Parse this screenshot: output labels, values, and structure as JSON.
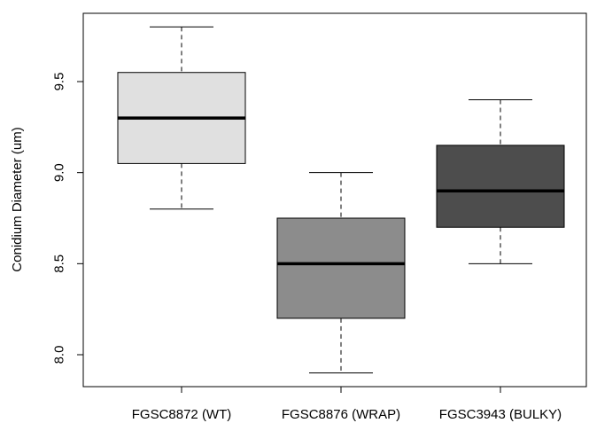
{
  "chart_data": {
    "type": "boxplot",
    "title": "",
    "xlabel": "",
    "ylabel": "Conidium Diameter (um)",
    "ylim": [
      7.8,
      9.85
    ],
    "yticks": [
      "8.0",
      "8.5",
      "9.0",
      "9.5"
    ],
    "grid": false,
    "legend": "none",
    "categories": [
      "FGSC8872 (WT)",
      "FGSC8876 (WRAP)",
      "FGSC3943 (BULKY)"
    ],
    "boxes": [
      {
        "category": "FGSC8872 (WT)",
        "whisker_low": 8.8,
        "q1": 9.05,
        "median": 9.3,
        "q3": 9.55,
        "whisker_high": 9.8,
        "fill": "#e0e0e0"
      },
      {
        "category": "FGSC8876 (WRAP)",
        "whisker_low": 7.9,
        "q1": 8.2,
        "median": 8.5,
        "q3": 8.75,
        "whisker_high": 9.0,
        "fill": "#8c8c8c"
      },
      {
        "category": "FGSC3943 (BULKY)",
        "whisker_low": 8.5,
        "q1": 8.7,
        "median": 8.9,
        "q3": 9.15,
        "whisker_high": 9.4,
        "fill": "#4d4d4d"
      }
    ]
  }
}
